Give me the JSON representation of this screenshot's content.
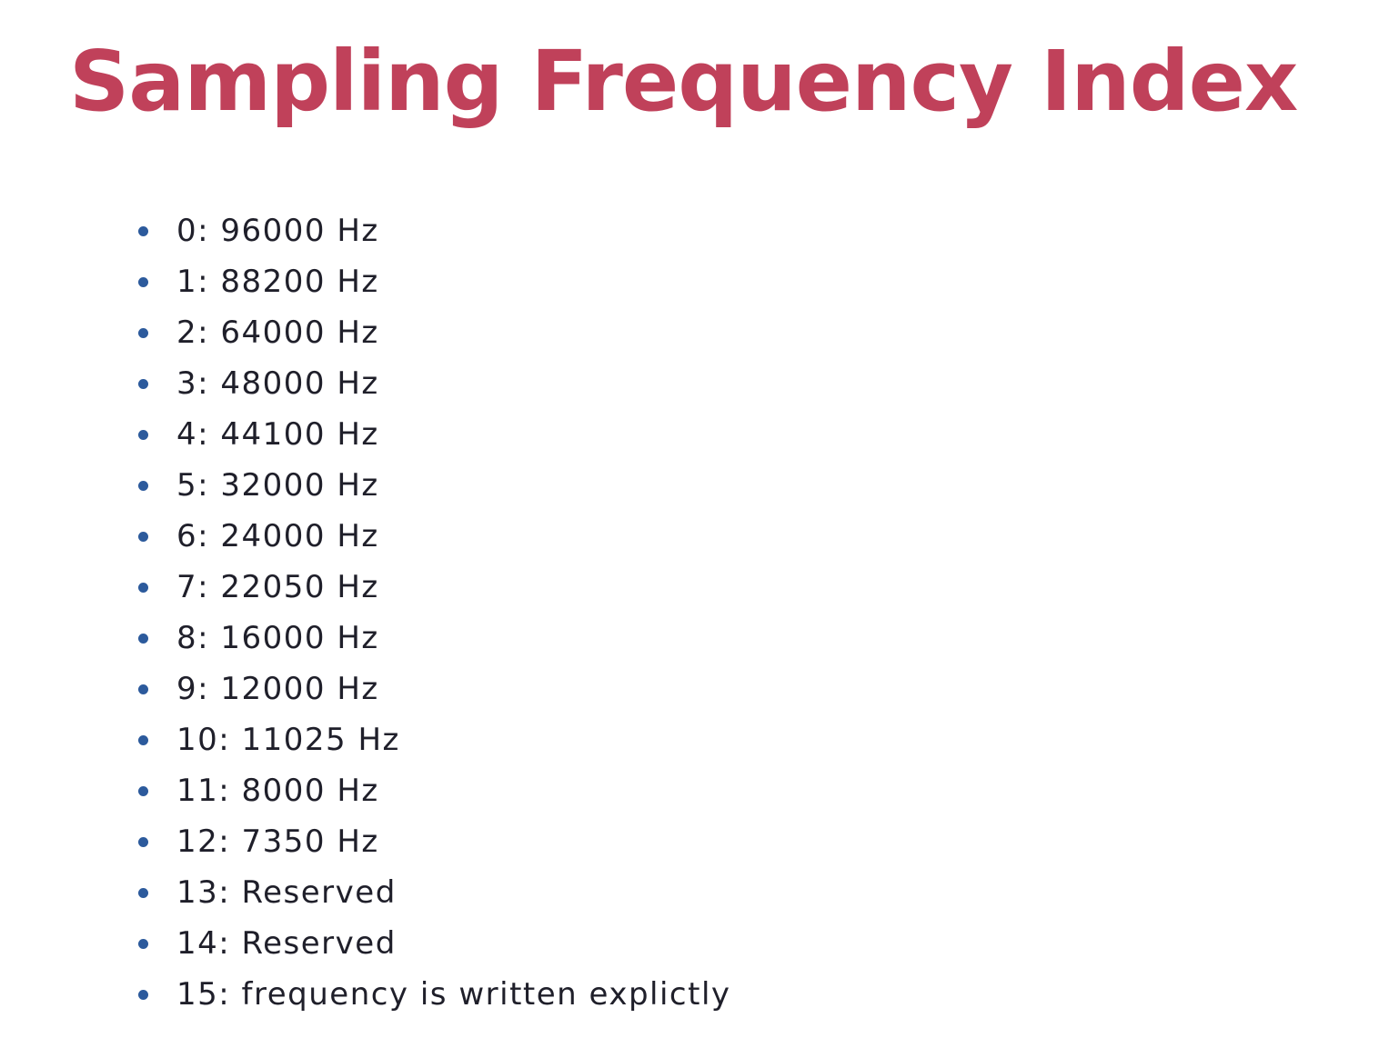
{
  "slide": {
    "title": "Sampling Frequency Index",
    "items": [
      "0: 96000 Hz",
      "1: 88200 Hz",
      "2: 64000 Hz",
      "3: 48000 Hz",
      "4: 44100 Hz",
      "5: 32000 Hz",
      "6: 24000 Hz",
      "7: 22050 Hz",
      "8: 16000 Hz",
      "9: 12000 Hz",
      "10: 11025 Hz",
      "11: 8000 Hz",
      "12: 7350 Hz",
      "13: Reserved",
      "14: Reserved",
      "15: frequency is written explictly"
    ]
  },
  "colors": {
    "title": "#c0415a",
    "text": "#1f1f2a",
    "bullet": "#2c5a9c",
    "background": "#ffffff"
  }
}
